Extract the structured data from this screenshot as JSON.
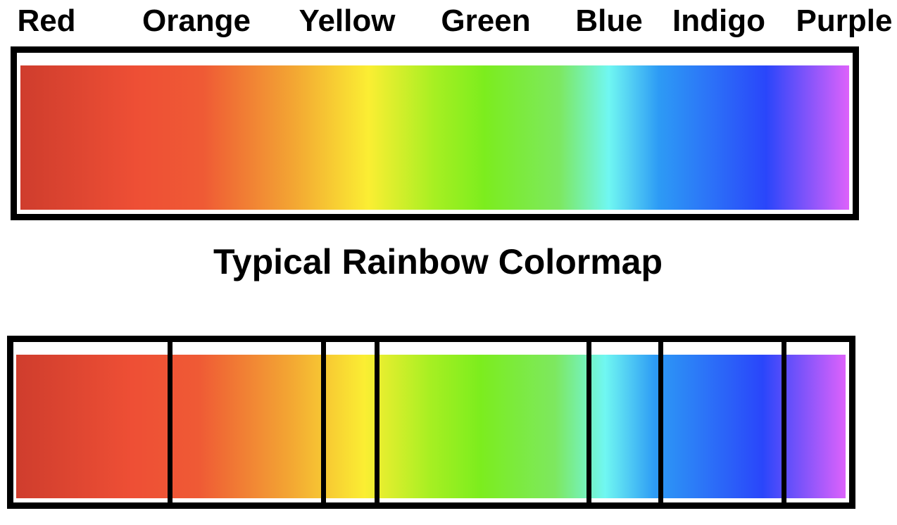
{
  "colors": [
    {
      "name": "Red",
      "hex": "#d63f2f"
    },
    {
      "name": "Orange",
      "hex": "#ed5136"
    },
    {
      "name": "Yellow",
      "hex": "#fbef33"
    },
    {
      "name": "Green",
      "hex": "#7cee1e"
    },
    {
      "name": "Blue",
      "hex": "#70f6f0"
    },
    {
      "name": "Indigo",
      "hex": "#2947f9"
    },
    {
      "name": "Purple",
      "hex": "#da5ef9"
    }
  ],
  "labels": {
    "red": "Red",
    "orange": "Orange",
    "yellow": "Yellow",
    "green": "Green",
    "blue": "Blue",
    "indigo": "Indigo",
    "purple": "Purple"
  },
  "caption": "Typical Rainbow Colormap",
  "gradient_stops": [
    {
      "color": "#cf3d2d",
      "position": 0
    },
    {
      "color": "#ee4f35",
      "position": 0.14
    },
    {
      "color": "#ef5a35",
      "position": 0.22
    },
    {
      "color": "#f3a633",
      "position": 0.33
    },
    {
      "color": "#fbee33",
      "position": 0.42
    },
    {
      "color": "#a6ef22",
      "position": 0.5
    },
    {
      "color": "#7ced1e",
      "position": 0.56
    },
    {
      "color": "#7de860",
      "position": 0.65
    },
    {
      "color": "#70f7f2",
      "position": 0.71
    },
    {
      "color": "#2d9bf5",
      "position": 0.77
    },
    {
      "color": "#2a46fa",
      "position": 0.9
    },
    {
      "color": "#dd62fb",
      "position": 1
    }
  ],
  "band_boundaries": [
    0.185,
    0.37,
    0.435,
    0.69,
    0.777,
    0.925
  ]
}
